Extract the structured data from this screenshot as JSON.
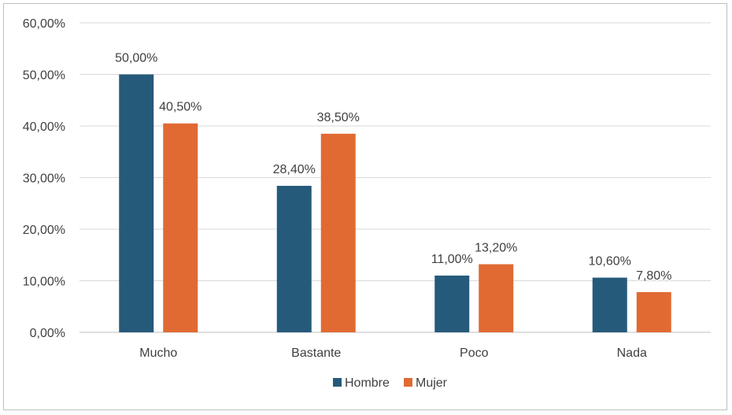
{
  "chart_data": {
    "type": "bar",
    "categories": [
      "Mucho",
      "Bastante",
      "Poco",
      "Nada"
    ],
    "series": [
      {
        "name": "Hombre",
        "color": "#255a7b",
        "values": [
          50.0,
          28.4,
          11.0,
          10.6
        ],
        "labels": [
          "50,00%",
          "28,40%",
          "11,00%",
          "10,60%"
        ]
      },
      {
        "name": "Mujer",
        "color": "#e06a32",
        "values": [
          40.5,
          38.5,
          13.2,
          7.8
        ],
        "labels": [
          "40,50%",
          "38,50%",
          "13,20%",
          "7,80%"
        ]
      }
    ],
    "ylim": [
      0,
      60
    ],
    "yticks": [
      0,
      10,
      20,
      30,
      40,
      50,
      60
    ],
    "ytick_labels": [
      "0,00%",
      "10,00%",
      "20,00%",
      "30,00%",
      "40,00%",
      "50,00%",
      "60,00%"
    ],
    "grid": true,
    "legend_position": "bottom",
    "title": "",
    "xlabel": "",
    "ylabel": ""
  }
}
